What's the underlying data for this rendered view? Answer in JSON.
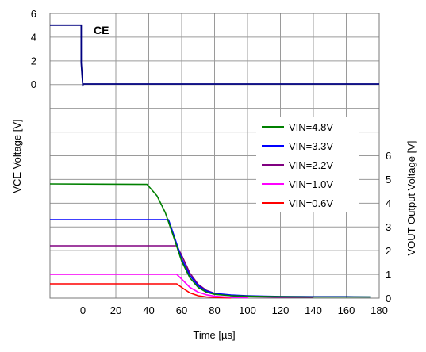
{
  "chart_data": {
    "type": "line",
    "title": "",
    "xlabel": "Time [µs]",
    "ylabel_left": "VCE Voltage [V]",
    "ylabel_right": "VOUT Output Voltage [V]",
    "ce_label": "CE",
    "xlim": [
      -20,
      180
    ],
    "x_ticks": [
      0,
      20,
      40,
      60,
      80,
      100,
      120,
      140,
      160,
      180
    ],
    "ce_axis": {
      "range": [
        0,
        6
      ],
      "ticks": [
        0,
        2,
        4,
        6
      ]
    },
    "vout_axis": {
      "range": [
        0,
        6
      ],
      "ticks": [
        0,
        1,
        2,
        3,
        4,
        5,
        6
      ]
    },
    "grid": true,
    "legend_position": "right",
    "ce_series": {
      "name": "CE",
      "color": "#000080",
      "x": [
        -20,
        -1,
        -1,
        0,
        0,
        180
      ],
      "y": [
        5.0,
        5.0,
        1.8,
        -0.2,
        0.0,
        0.0
      ]
    },
    "series": [
      {
        "name": "VIN=4.8V",
        "color": "#008000",
        "x": [
          -20,
          39,
          45,
          50,
          55,
          60,
          65,
          70,
          75,
          80,
          90,
          100,
          110,
          120,
          140,
          160,
          175
        ],
        "y": [
          4.8,
          4.78,
          4.3,
          3.6,
          2.6,
          1.55,
          0.85,
          0.45,
          0.25,
          0.16,
          0.1,
          0.08,
          0.07,
          0.06,
          0.05,
          0.05,
          0.05
        ]
      },
      {
        "name": "VIN=3.3V",
        "color": "#0000ff",
        "x": [
          -20,
          52,
          55,
          60,
          65,
          70,
          75,
          80,
          90,
          100,
          110,
          120,
          140,
          160,
          175
        ],
        "y": [
          3.3,
          3.3,
          2.7,
          1.65,
          0.95,
          0.52,
          0.3,
          0.2,
          0.13,
          0.1,
          0.08,
          0.07,
          0.06,
          0.06,
          0.05
        ]
      },
      {
        "name": "VIN=2.2V",
        "color": "#800080",
        "x": [
          -20,
          57,
          60,
          65,
          70,
          75,
          80,
          90,
          100,
          120,
          140
        ],
        "y": [
          2.2,
          2.2,
          1.8,
          1.05,
          0.58,
          0.33,
          0.2,
          0.1,
          0.06,
          0.04,
          0.03
        ]
      },
      {
        "name": "VIN=1.0V",
        "color": "#ff00ff",
        "x": [
          -20,
          57,
          60,
          65,
          70,
          75,
          80,
          90,
          100
        ],
        "y": [
          1.0,
          1.0,
          0.8,
          0.45,
          0.25,
          0.14,
          0.08,
          0.03,
          0.02
        ]
      },
      {
        "name": "VIN=0.6V",
        "color": "#ff0000",
        "x": [
          -20,
          57,
          60,
          65,
          70,
          75,
          80,
          90
        ],
        "y": [
          0.6,
          0.6,
          0.45,
          0.22,
          0.1,
          0.05,
          0.03,
          0.01
        ]
      }
    ]
  }
}
